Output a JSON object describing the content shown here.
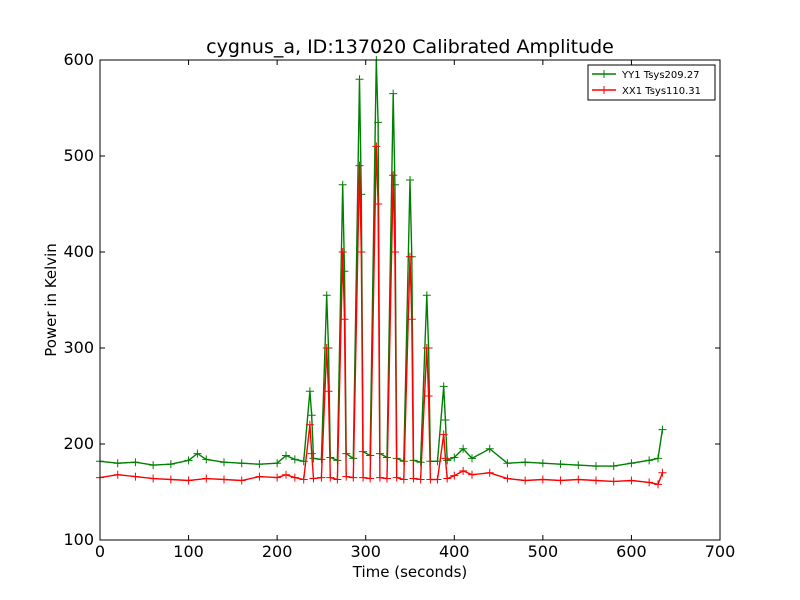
{
  "chart_data": {
    "type": "line",
    "title": "cygnus_a, ID:137020 Calibrated Amplitude",
    "xlabel": "Time (seconds)",
    "ylabel": "Power in Kelvin",
    "xlim": [
      0,
      700
    ],
    "ylim": [
      100,
      600
    ],
    "xticks": [
      "0",
      "100",
      "200",
      "300",
      "400",
      "500",
      "600",
      "700"
    ],
    "yticks": [
      "100",
      "200",
      "300",
      "400",
      "500",
      "600"
    ],
    "grid": false,
    "legend_position": "top-right",
    "marker": "+",
    "series": [
      {
        "name": "YY1 Tsys209.27",
        "color": "#008000",
        "x": [
          0,
          20,
          40,
          60,
          80,
          100,
          110,
          120,
          140,
          160,
          180,
          200,
          210,
          220,
          230,
          237,
          239,
          241,
          250,
          256,
          258,
          260,
          268,
          274,
          276,
          278,
          286,
          293,
          295,
          297,
          305,
          312,
          314,
          316,
          324,
          331,
          333,
          335,
          343,
          350,
          352,
          354,
          362,
          369,
          371,
          373,
          381,
          388,
          390,
          392,
          400,
          410,
          420,
          440,
          460,
          480,
          500,
          520,
          540,
          560,
          580,
          600,
          620,
          630,
          635
        ],
        "y": [
          182,
          180,
          181,
          178,
          179,
          183,
          190,
          184,
          181,
          180,
          179,
          180,
          188,
          184,
          182,
          255,
          230,
          185,
          184,
          355,
          300,
          186,
          183,
          470,
          380,
          190,
          185,
          580,
          460,
          192,
          188,
          600,
          535,
          190,
          186,
          565,
          470,
          185,
          182,
          475,
          395,
          183,
          181,
          355,
          300,
          182,
          182,
          260,
          225,
          183,
          186,
          195,
          185,
          195,
          180,
          181,
          180,
          179,
          178,
          177,
          177,
          180,
          183,
          185,
          215
        ]
      },
      {
        "name": "XX1 Tsys110.31",
        "color": "#ff0000",
        "x": [
          0,
          20,
          40,
          60,
          80,
          100,
          120,
          140,
          160,
          180,
          200,
          210,
          220,
          230,
          237,
          239,
          241,
          250,
          256,
          258,
          260,
          268,
          274,
          276,
          278,
          286,
          293,
          295,
          297,
          305,
          312,
          314,
          316,
          324,
          331,
          333,
          335,
          343,
          350,
          352,
          354,
          362,
          369,
          371,
          373,
          381,
          388,
          390,
          392,
          400,
          410,
          420,
          440,
          460,
          480,
          500,
          520,
          540,
          560,
          580,
          600,
          620,
          630,
          635
        ],
        "y": [
          165,
          168,
          166,
          164,
          163,
          162,
          164,
          163,
          162,
          166,
          165,
          168,
          165,
          163,
          220,
          190,
          164,
          165,
          300,
          255,
          165,
          163,
          400,
          330,
          166,
          165,
          490,
          400,
          165,
          164,
          510,
          450,
          165,
          164,
          480,
          400,
          165,
          163,
          395,
          330,
          164,
          163,
          300,
          250,
          163,
          163,
          210,
          185,
          164,
          167,
          172,
          168,
          170,
          164,
          162,
          163,
          162,
          163,
          162,
          161,
          162,
          160,
          158,
          170
        ]
      }
    ]
  }
}
